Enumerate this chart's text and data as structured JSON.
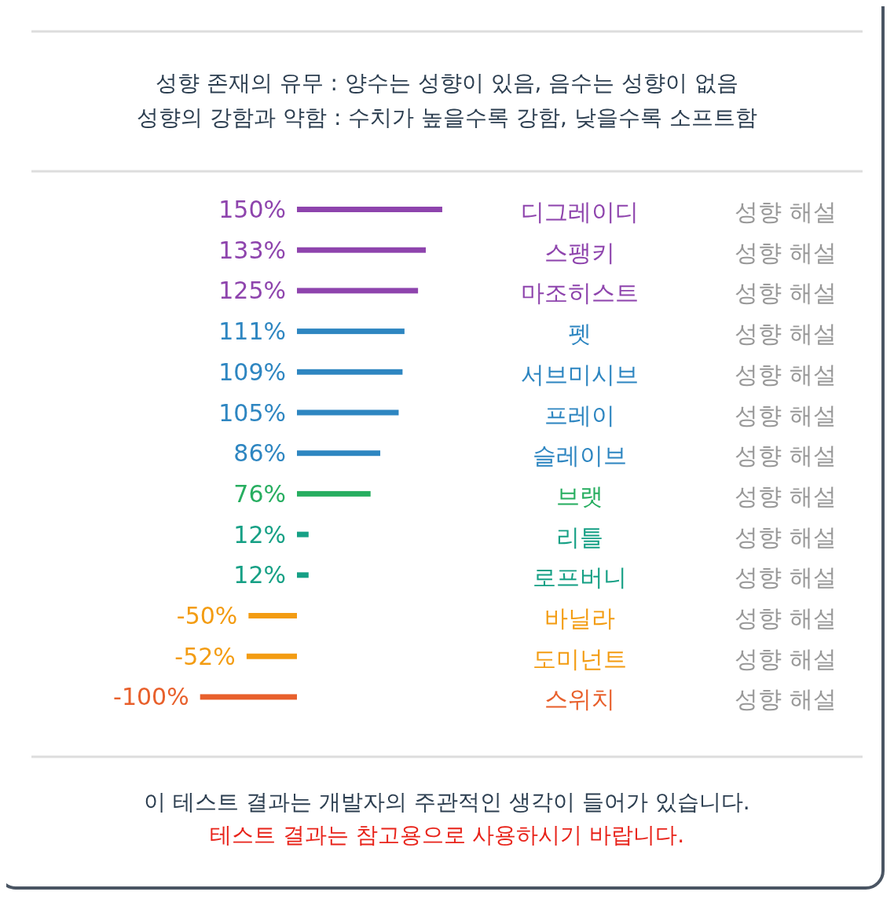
{
  "chart_data": {
    "type": "bar",
    "orientation": "horizontal",
    "relative": false,
    "title": "성향 존재의 유무 : 양수는 성향이 있음, 음수는 성향이 없음",
    "subtitle": "성향의 강함과 약함 : 수치가 높을수록 강함, 낮을수록 소프트함",
    "categories": [
      "디그레이디",
      "스팽키",
      "마조히스트",
      "펫",
      "서브미시브",
      "프레이",
      "슬레이브",
      "브랫",
      "리틀",
      "로프버니",
      "바닐라",
      "도미넌트",
      "스위치"
    ],
    "values": [
      150,
      133,
      125,
      111,
      109,
      105,
      86,
      76,
      12,
      12,
      -50,
      -52,
      -100
    ],
    "colors": [
      "#8e44ad",
      "#8e44ad",
      "#8e44ad",
      "#2e86c1",
      "#2e86c1",
      "#2e86c1",
      "#2e86c1",
      "#27ae60",
      "#16a085",
      "#16a085",
      "#f39c12",
      "#f39c12",
      "#e8602c"
    ],
    "value_labels": [
      "150%",
      "133%",
      "125%",
      "111%",
      "109%",
      "105%",
      "86%",
      "76%",
      "12%",
      "12%",
      "-50%",
      "-52%",
      "-100%"
    ],
    "annotations": [
      "성향 해설",
      "성향 해설",
      "성향 해설",
      "성향 해설",
      "성향 해설",
      "성향 해설",
      "성향 해설",
      "성향 해설",
      "성향 해설",
      "성향 해설",
      "성향 해설",
      "성향 해설",
      "성향 해설",
      "이 테스트 결과는 개발자의 주관적인 생각이 들어가 있습니다.",
      "테스트 결과는 참고용으로 사용하시기 바랍니다."
    ]
  }
}
